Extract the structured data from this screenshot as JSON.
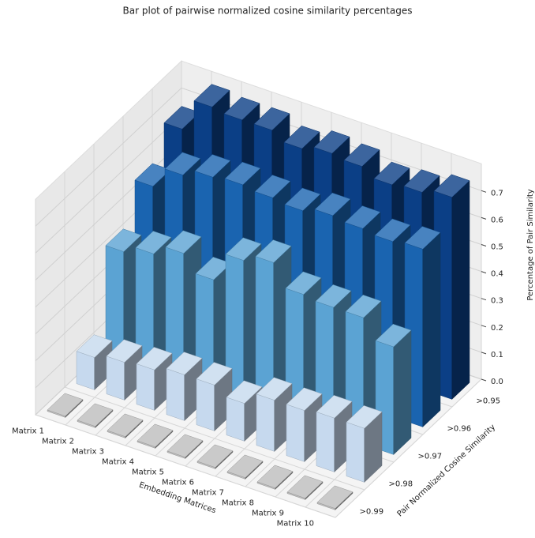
{
  "chart_data": {
    "type": "bar3d",
    "title": "Bar plot of pairwise normalized cosine similarity percentages",
    "xlabel": "Embedding Matrices",
    "ylabel": "Pair Normalized Cosine Similarity",
    "zlabel": "Percentage of Pair Similarity",
    "categories": [
      "Matrix 1",
      "Matrix 2",
      "Matrix 3",
      "Matrix 4",
      "Matrix 5",
      "Matrix 6",
      "Matrix 7",
      "Matrix 8",
      "Matrix 9",
      "Matrix 10"
    ],
    "series": [
      {
        "name": ">0.95",
        "color": "#0b3f86",
        "values": [
          0.66,
          0.78,
          0.77,
          0.77,
          0.74,
          0.76,
          0.75,
          0.72,
          0.73,
          0.75
        ]
      },
      {
        "name": ">0.96",
        "color": "#1a64b0",
        "values": [
          0.55,
          0.63,
          0.66,
          0.67,
          0.66,
          0.65,
          0.67,
          0.66,
          0.65,
          0.66
        ]
      },
      {
        "name": ">0.97",
        "color": "#5ba3d3",
        "values": [
          0.41,
          0.44,
          0.48,
          0.42,
          0.53,
          0.56,
          0.48,
          0.47,
          0.47,
          0.4
        ]
      },
      {
        "name": ">0.98",
        "color": "#c6d9ee",
        "values": [
          0.12,
          0.14,
          0.15,
          0.17,
          0.17,
          0.14,
          0.19,
          0.19,
          0.2,
          0.2
        ]
      },
      {
        "name": ">0.99",
        "color": "#bdbdbd",
        "values": [
          0.005,
          0.005,
          0.005,
          0.005,
          0.005,
          0.005,
          0.005,
          0.005,
          0.005,
          0.005
        ]
      }
    ],
    "zlim": [
      0,
      0.8
    ],
    "zticks": [
      {
        "value": 0,
        "label": "0.0"
      },
      0.1,
      0.2,
      0.3,
      0.4,
      0.5,
      0.6,
      0.7
    ],
    "grid": true
  }
}
